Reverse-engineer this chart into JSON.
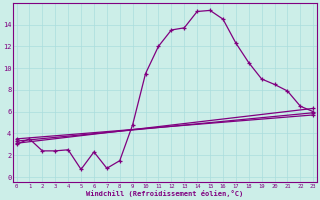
{
  "x": [
    0,
    1,
    2,
    3,
    4,
    5,
    6,
    7,
    8,
    9,
    10,
    11,
    12,
    13,
    14,
    15,
    16,
    17,
    18,
    19,
    20,
    21,
    22,
    23
  ],
  "line1": [
    3.0,
    3.5,
    2.4,
    2.4,
    2.5,
    0.7,
    2.3,
    0.8,
    1.5,
    4.8,
    9.5,
    12.0,
    13.5,
    13.7,
    15.2,
    15.3,
    14.5,
    12.3,
    10.5,
    9.0,
    8.5,
    7.9,
    6.5,
    6.0
  ],
  "line2_x": [
    0,
    23
  ],
  "line2_y": [
    3.1,
    6.3
  ],
  "line3_x": [
    0,
    23
  ],
  "line3_y": [
    3.3,
    5.9
  ],
  "line4_x": [
    0,
    23
  ],
  "line4_y": [
    3.5,
    5.7
  ],
  "line_color": "#800080",
  "bg_color": "#cceee8",
  "grid_color": "#aadddd",
  "yticks": [
    0,
    2,
    4,
    6,
    8,
    10,
    12,
    14
  ],
  "xticks": [
    0,
    1,
    2,
    3,
    4,
    5,
    6,
    7,
    8,
    9,
    10,
    11,
    12,
    13,
    14,
    15,
    16,
    17,
    18,
    19,
    20,
    21,
    22,
    23
  ],
  "xlim": [
    -0.3,
    23.3
  ],
  "ylim": [
    -0.5,
    16.0
  ],
  "xlabel": "Windchill (Refroidissement éolien,°C)"
}
